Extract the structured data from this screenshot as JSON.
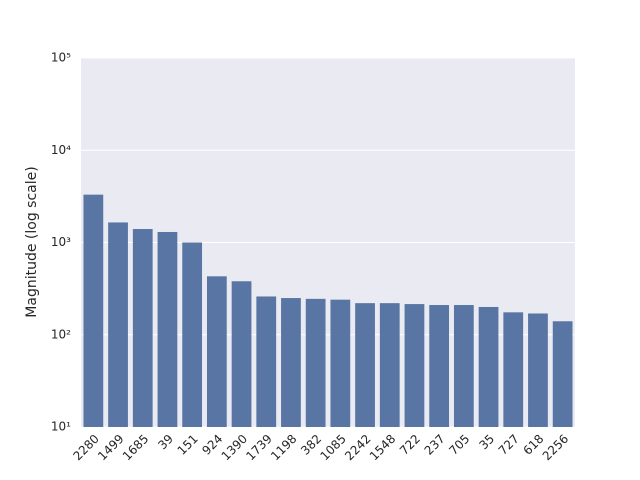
{
  "chart_data": {
    "type": "bar",
    "y_label": "Magnitude (log scale)",
    "categories": [
      "2280",
      "1499",
      "1685",
      "39",
      "151",
      "924",
      "1390",
      "1739",
      "1198",
      "382",
      "1085",
      "2242",
      "1548",
      "722",
      "237",
      "705",
      "35",
      "727",
      "618",
      "2256"
    ],
    "values": [
      3300,
      1650,
      1400,
      1300,
      1000,
      430,
      380,
      260,
      250,
      245,
      240,
      220,
      220,
      215,
      210,
      210,
      200,
      175,
      170,
      140
    ],
    "color": "#5875a4",
    "log_scale": true,
    "grid": true,
    "ylim": [
      10,
      100000
    ],
    "yticks": [
      {
        "value": 10,
        "label": "10¹"
      },
      {
        "value": 100,
        "label": "10²"
      },
      {
        "value": 1000,
        "label": "10³"
      },
      {
        "value": 10000,
        "label": "10⁴"
      },
      {
        "value": 100000,
        "label": "10⁵"
      }
    ]
  }
}
